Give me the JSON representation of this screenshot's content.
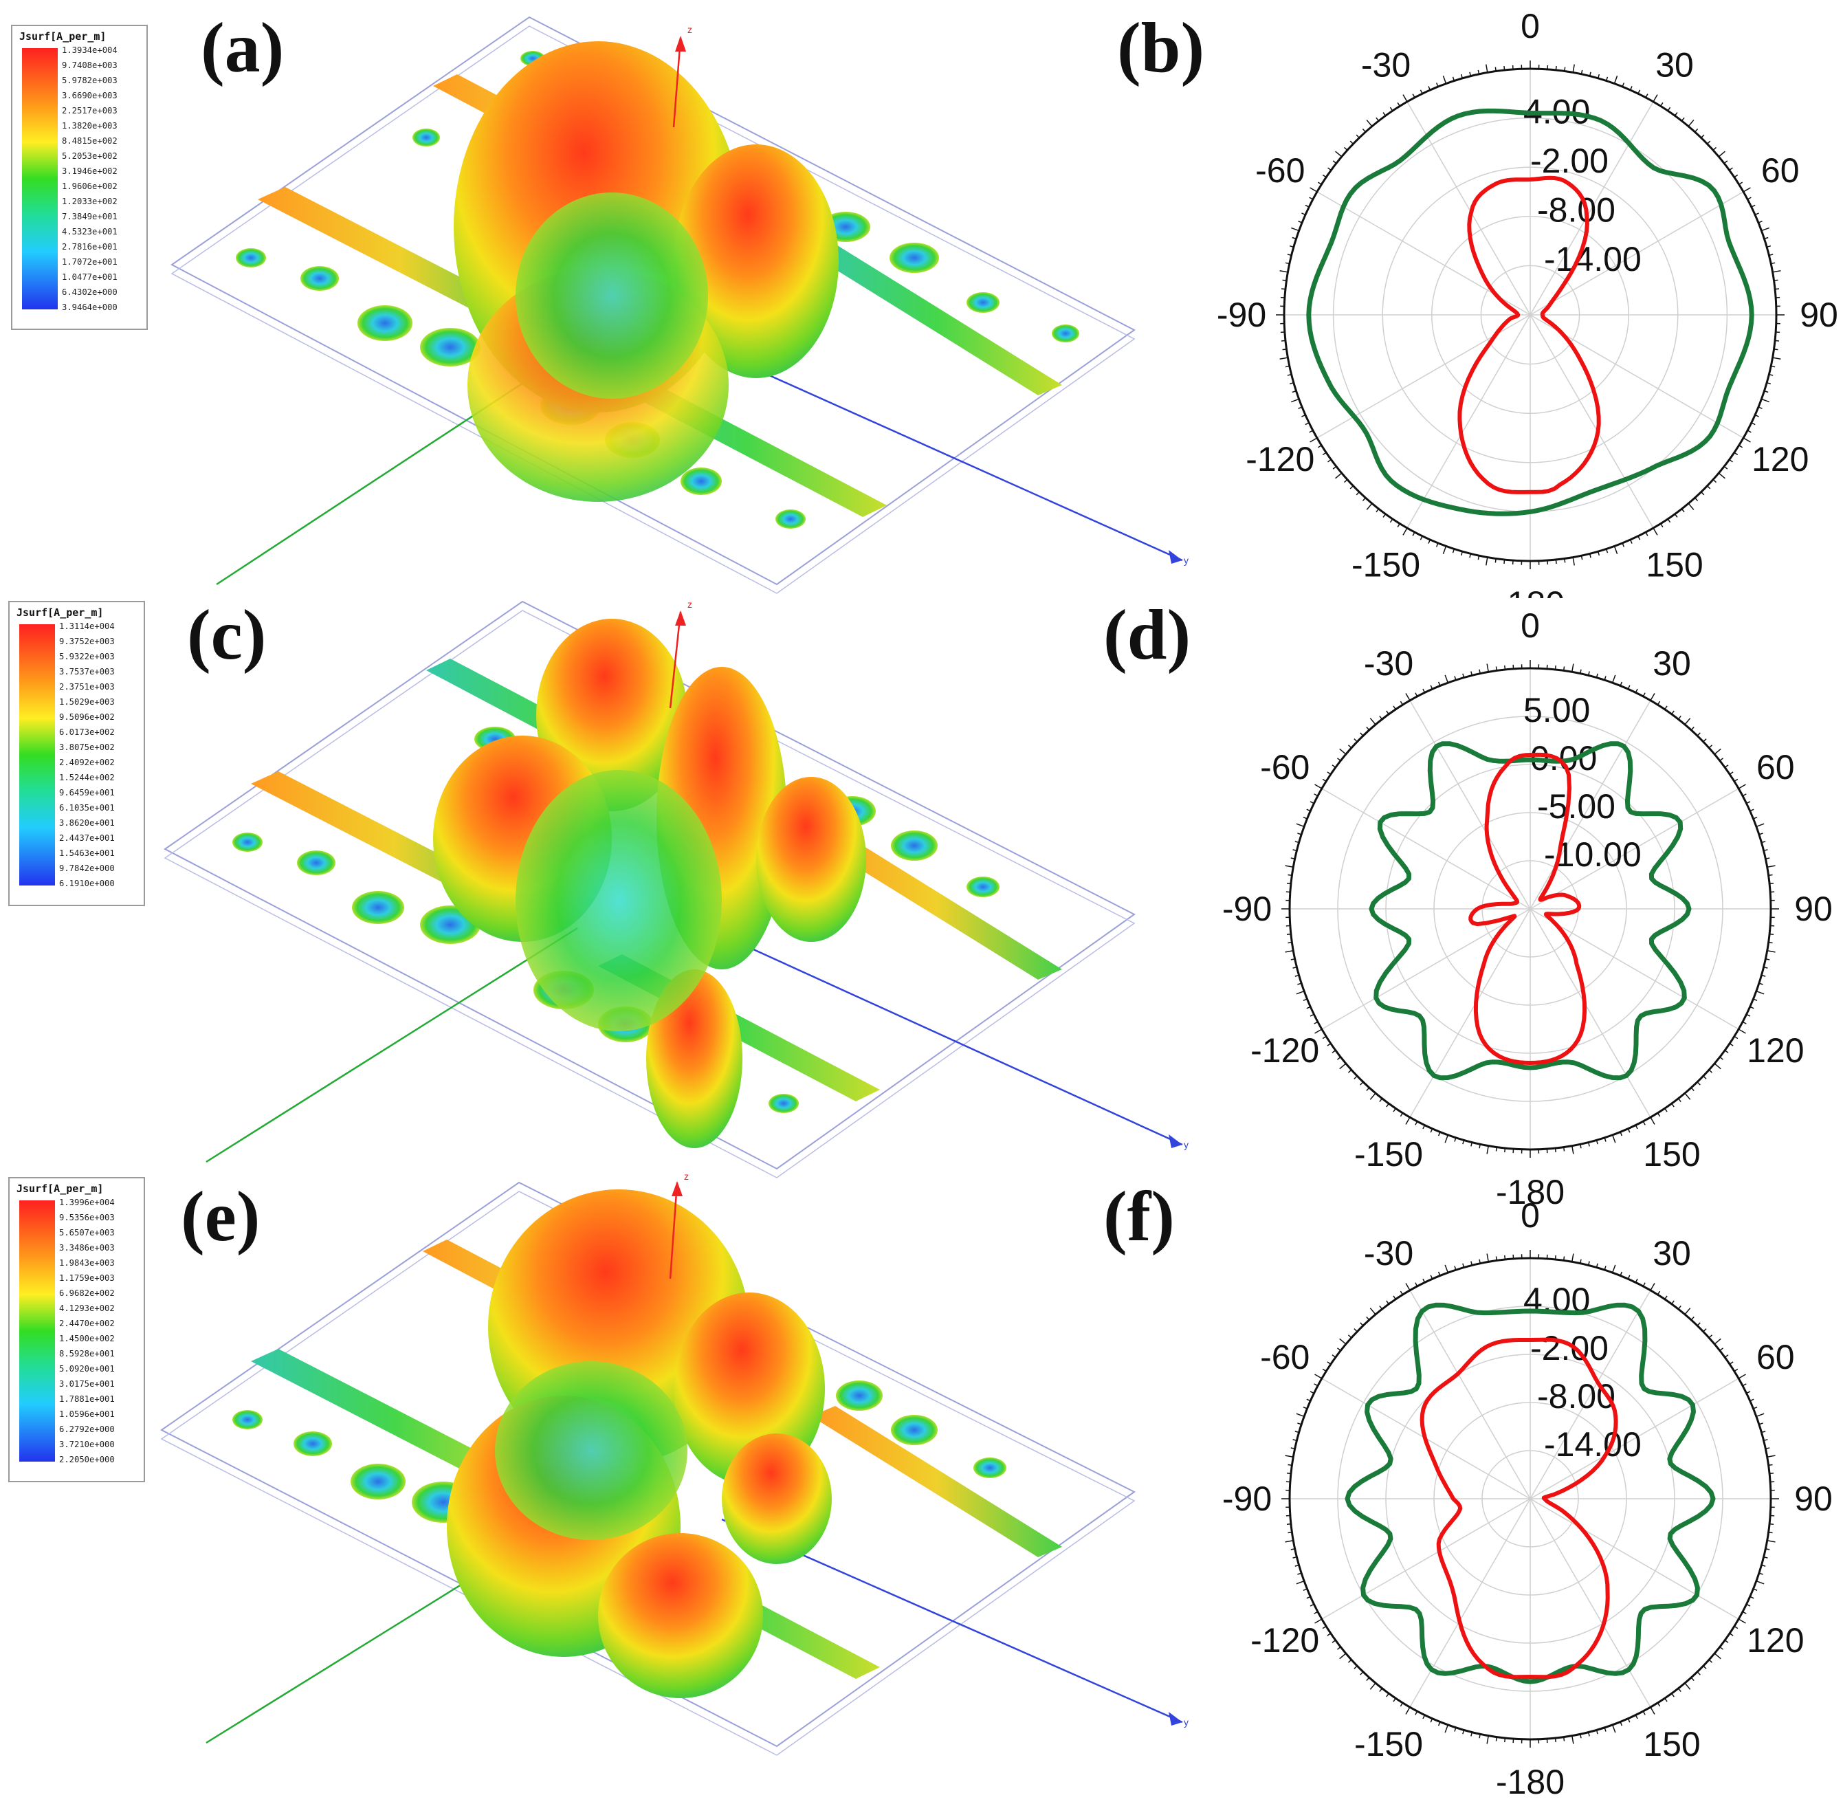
{
  "panels": {
    "a": {
      "label": "(a)"
    },
    "b": {
      "label": "(b)"
    },
    "c": {
      "label": "(c)"
    },
    "d": {
      "label": "(d)"
    },
    "e": {
      "label": "(e)"
    },
    "f": {
      "label": "(f)"
    }
  },
  "legends": [
    {
      "title": "Jsurf[A_per_m]",
      "values": [
        "1.3934e+004",
        "9.7408e+003",
        "5.9782e+003",
        "3.6690e+003",
        "2.2517e+003",
        "1.3820e+003",
        "8.4815e+002",
        "5.2053e+002",
        "3.1946e+002",
        "1.9606e+002",
        "1.2033e+002",
        "7.3849e+001",
        "4.5323e+001",
        "2.7816e+001",
        "1.7072e+001",
        "1.0477e+001",
        "6.4302e+000",
        "3.9464e+000"
      ]
    },
    {
      "title": "Jsurf[A_per_m]",
      "values": [
        "1.3114e+004",
        "9.3752e+003",
        "5.9322e+003",
        "3.7537e+003",
        "2.3751e+003",
        "1.5029e+003",
        "9.5096e+002",
        "6.0173e+002",
        "3.8075e+002",
        "2.4092e+002",
        "1.5244e+002",
        "9.6459e+001",
        "6.1035e+001",
        "3.8620e+001",
        "2.4437e+001",
        "1.5463e+001",
        "9.7842e+000",
        "6.1910e+000"
      ]
    },
    {
      "title": "Jsurf[A_per_m]",
      "values": [
        "1.3996e+004",
        "9.5356e+003",
        "5.6507e+003",
        "3.3486e+003",
        "1.9843e+003",
        "1.1759e+003",
        "6.9682e+002",
        "4.1293e+002",
        "2.4470e+002",
        "1.4500e+002",
        "8.5928e+001",
        "5.0920e+001",
        "3.0175e+001",
        "1.7881e+001",
        "1.0596e+001",
        "6.2792e+000",
        "3.7210e+000",
        "2.2050e+000"
      ]
    }
  ],
  "axes": {
    "z_label": "z",
    "y_label": "y"
  },
  "polar_angle_labels": [
    "0",
    "30",
    "60",
    "90",
    "120",
    "150",
    "-180",
    "-150",
    "-120",
    "-90",
    "-60",
    "-30"
  ],
  "colors": {
    "green_trace": "#1a7a3a",
    "red_trace": "#ee1111",
    "grid": "#cfcfcf"
  },
  "polar_plots": [
    {
      "radial_labels": [
        "4.00",
        "-2.00",
        "-8.00",
        "-14.00"
      ],
      "r_max": 4,
      "r_min": -20,
      "green": [
        [
          0,
          0.82
        ],
        [
          20,
          0.84
        ],
        [
          40,
          0.78
        ],
        [
          55,
          0.9
        ],
        [
          70,
          0.86
        ],
        [
          90,
          0.9
        ],
        [
          110,
          0.86
        ],
        [
          125,
          0.88
        ],
        [
          140,
          0.8
        ],
        [
          160,
          0.76
        ],
        [
          180,
          0.8
        ],
        [
          200,
          0.84
        ],
        [
          220,
          0.88
        ],
        [
          235,
          0.82
        ],
        [
          250,
          0.86
        ],
        [
          270,
          0.9
        ],
        [
          290,
          0.86
        ],
        [
          305,
          0.88
        ],
        [
          320,
          0.82
        ],
        [
          340,
          0.86
        ]
      ],
      "red": [
        [
          0,
          0.55
        ],
        [
          15,
          0.56
        ],
        [
          30,
          0.46
        ],
        [
          50,
          0.16
        ],
        [
          70,
          0.07
        ],
        [
          90,
          0.05
        ],
        [
          110,
          0.08
        ],
        [
          130,
          0.25
        ],
        [
          150,
          0.55
        ],
        [
          170,
          0.7
        ],
        [
          180,
          0.72
        ],
        [
          195,
          0.7
        ],
        [
          215,
          0.5
        ],
        [
          235,
          0.2
        ],
        [
          260,
          0.08
        ],
        [
          270,
          0.05
        ],
        [
          290,
          0.09
        ],
        [
          310,
          0.25
        ],
        [
          330,
          0.48
        ],
        [
          345,
          0.55
        ]
      ]
    },
    {
      "radial_labels": [
        "5.00",
        "0.00",
        "-5.00",
        "-10.00"
      ],
      "r_max": 5,
      "r_min": -15,
      "green": [
        [
          0,
          0.62
        ],
        [
          15,
          0.64
        ],
        [
          30,
          0.78
        ],
        [
          45,
          0.58
        ],
        [
          60,
          0.72
        ],
        [
          75,
          0.52
        ],
        [
          90,
          0.66
        ],
        [
          105,
          0.52
        ],
        [
          120,
          0.74
        ],
        [
          135,
          0.64
        ],
        [
          150,
          0.8
        ],
        [
          165,
          0.66
        ],
        [
          180,
          0.66
        ],
        [
          195,
          0.66
        ],
        [
          210,
          0.8
        ],
        [
          225,
          0.64
        ],
        [
          240,
          0.74
        ],
        [
          255,
          0.52
        ],
        [
          270,
          0.66
        ],
        [
          285,
          0.52
        ],
        [
          300,
          0.72
        ],
        [
          315,
          0.58
        ],
        [
          330,
          0.78
        ],
        [
          345,
          0.64
        ]
      ],
      "red": [
        [
          0,
          0.64
        ],
        [
          15,
          0.6
        ],
        [
          25,
          0.3
        ],
        [
          45,
          0.06
        ],
        [
          70,
          0.16
        ],
        [
          90,
          0.2
        ],
        [
          110,
          0.07
        ],
        [
          140,
          0.3
        ],
        [
          160,
          0.58
        ],
        [
          180,
          0.64
        ],
        [
          200,
          0.58
        ],
        [
          220,
          0.3
        ],
        [
          245,
          0.07
        ],
        [
          255,
          0.24
        ],
        [
          270,
          0.22
        ],
        [
          285,
          0.08
        ],
        [
          310,
          0.1
        ],
        [
          335,
          0.42
        ],
        [
          350,
          0.6
        ]
      ]
    },
    {
      "radial_labels": [
        "4.00",
        "-2.00",
        "-8.00",
        "-14.00"
      ],
      "r_max": 4,
      "r_min": -20,
      "green": [
        [
          0,
          0.78
        ],
        [
          15,
          0.8
        ],
        [
          30,
          0.9
        ],
        [
          45,
          0.66
        ],
        [
          60,
          0.78
        ],
        [
          75,
          0.6
        ],
        [
          90,
          0.76
        ],
        [
          105,
          0.6
        ],
        [
          120,
          0.8
        ],
        [
          135,
          0.66
        ],
        [
          150,
          0.82
        ],
        [
          165,
          0.72
        ],
        [
          180,
          0.76
        ],
        [
          195,
          0.72
        ],
        [
          210,
          0.82
        ],
        [
          225,
          0.66
        ],
        [
          240,
          0.8
        ],
        [
          255,
          0.6
        ],
        [
          270,
          0.76
        ],
        [
          285,
          0.6
        ],
        [
          300,
          0.78
        ],
        [
          315,
          0.66
        ],
        [
          330,
          0.9
        ],
        [
          345,
          0.8
        ]
      ],
      "red": [
        [
          0,
          0.66
        ],
        [
          15,
          0.66
        ],
        [
          30,
          0.56
        ],
        [
          45,
          0.5
        ],
        [
          60,
          0.36
        ],
        [
          80,
          0.1
        ],
        [
          90,
          0.06
        ],
        [
          110,
          0.14
        ],
        [
          140,
          0.5
        ],
        [
          165,
          0.72
        ],
        [
          180,
          0.74
        ],
        [
          195,
          0.72
        ],
        [
          220,
          0.5
        ],
        [
          245,
          0.42
        ],
        [
          260,
          0.3
        ],
        [
          270,
          0.32
        ],
        [
          290,
          0.42
        ],
        [
          310,
          0.58
        ],
        [
          330,
          0.6
        ],
        [
          345,
          0.66
        ]
      ]
    }
  ]
}
